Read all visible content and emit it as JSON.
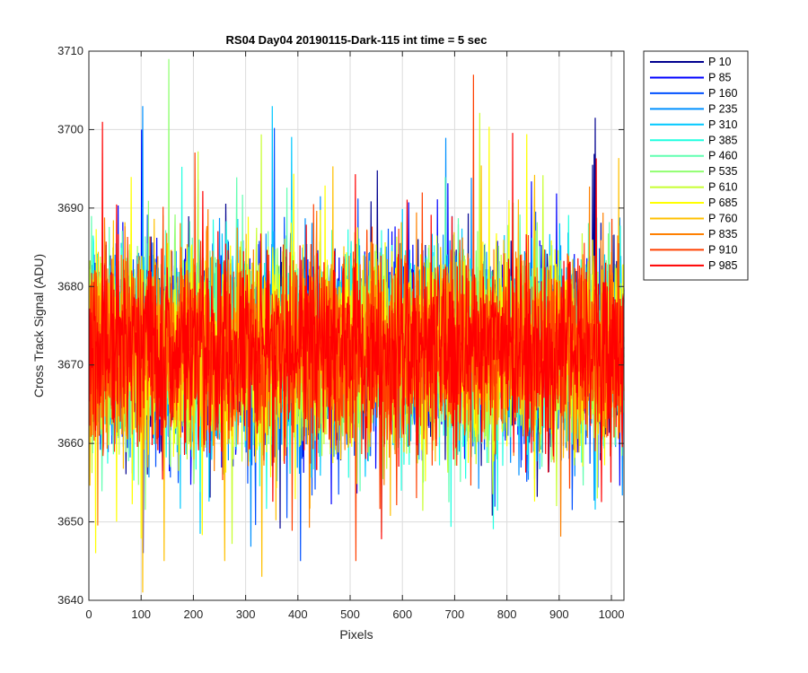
{
  "chart_data": {
    "type": "line",
    "title": "RS04 Day04 20190115-Dark-115 int time = 5 sec",
    "xlabel": "Pixels",
    "ylabel": "Cross Track Signal (ADU)",
    "xlim": [
      0,
      1024
    ],
    "ylim": [
      3640,
      3710
    ],
    "xticks": [
      0,
      100,
      200,
      300,
      400,
      500,
      600,
      700,
      800,
      900,
      1000
    ],
    "yticks": [
      3640,
      3650,
      3660,
      3670,
      3680,
      3690,
      3700,
      3710
    ],
    "grid": true,
    "legend_position": "outside-top-right",
    "noise_model": {
      "n_points": 1024,
      "mean": 3672,
      "typical_band": [
        3660,
        3685
      ],
      "full_range": [
        3641,
        3709
      ]
    },
    "series": [
      {
        "name": "P 10",
        "color": "#00008F"
      },
      {
        "name": "P 85",
        "color": "#0000FF"
      },
      {
        "name": "P 160",
        "color": "#0050FF"
      },
      {
        "name": "P 235",
        "color": "#0090FF"
      },
      {
        "name": "P 310",
        "color": "#00C8FF"
      },
      {
        "name": "P 385",
        "color": "#20FFE0"
      },
      {
        "name": "P 460",
        "color": "#60FFB0"
      },
      {
        "name": "P 535",
        "color": "#90FF70"
      },
      {
        "name": "P 610",
        "color": "#C8FF30"
      },
      {
        "name": "P 685",
        "color": "#FFFF00"
      },
      {
        "name": "P 760",
        "color": "#FFC000"
      },
      {
        "name": "P 835",
        "color": "#FF8000"
      },
      {
        "name": "P 910",
        "color": "#FF4000"
      },
      {
        "name": "P 985",
        "color": "#FF0000"
      }
    ],
    "peaks": [
      {
        "series": "P 985",
        "x": 25,
        "y": 3701
      },
      {
        "series": "P 85",
        "x": 100,
        "y": 3700
      },
      {
        "series": "P 535",
        "x": 152,
        "y": 3709
      },
      {
        "series": "P 910",
        "x": 735,
        "y": 3707
      },
      {
        "series": "P 760",
        "x": 102,
        "y": 3641
      },
      {
        "series": "P 760",
        "x": 330,
        "y": 3643
      },
      {
        "series": "P 685",
        "x": 12,
        "y": 3646
      }
    ]
  }
}
